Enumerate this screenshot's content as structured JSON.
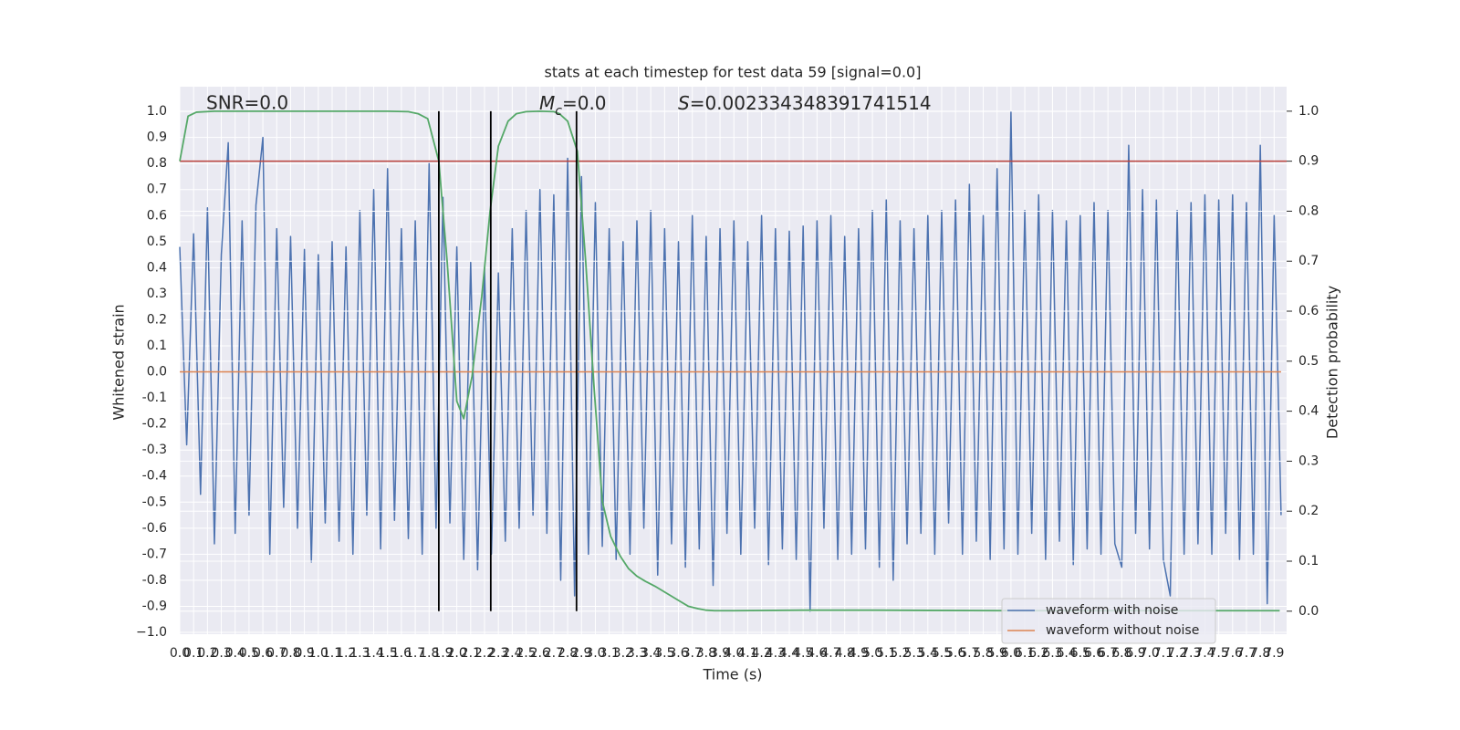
{
  "chart_data": {
    "type": "line",
    "title": "stats at each timestep for test data 59 [signal=0.0]",
    "x_label": "Time (s)",
    "y_label": "Whitened strain",
    "y2_label": "Detection probability",
    "xlim": [
      0,
      7.99
    ],
    "ylim": [
      -1.007,
      1.095
    ],
    "y2lim": [
      -0.046,
      1.049
    ],
    "grid": true,
    "legend": "lower right",
    "xticks": [
      {
        "value": 0,
        "label": "0.0"
      },
      0.1,
      0.2,
      0.3,
      0.4,
      0.5,
      0.6,
      0.7,
      0.8,
      0.9,
      {
        "value": 1,
        "label": "1.0"
      },
      1.1,
      1.2,
      1.3,
      1.4,
      1.5,
      1.6,
      1.7,
      1.8,
      1.9,
      {
        "value": 2,
        "label": "2.0"
      },
      2.1,
      2.2,
      2.3,
      2.4,
      2.5,
      2.6,
      2.7,
      2.8,
      2.9,
      {
        "value": 3,
        "label": "3.0"
      },
      3.1,
      3.2,
      3.3,
      3.4,
      3.5,
      3.6,
      3.7,
      3.8,
      3.9,
      {
        "value": 4,
        "label": "4.0"
      },
      4.1,
      4.2,
      4.3,
      4.4,
      4.5,
      4.6,
      4.7,
      4.8,
      4.9,
      {
        "value": 5,
        "label": "5.0"
      },
      5.1,
      5.2,
      5.3,
      5.4,
      5.5,
      5.6,
      5.7,
      5.8,
      5.9,
      {
        "value": 6,
        "label": "6.0"
      },
      6.1,
      6.2,
      6.3,
      6.4,
      6.5,
      6.6,
      6.7,
      6.8,
      6.9,
      {
        "value": 7,
        "label": "7.0"
      },
      7.1,
      7.2,
      7.3,
      7.4,
      7.5,
      7.6,
      7.7,
      7.8,
      7.9
    ],
    "yticks": [
      {
        "value": 1,
        "label": "1.0"
      },
      0.9,
      0.8,
      0.7,
      0.6,
      0.5,
      0.4,
      0.3,
      0.2,
      0.1,
      {
        "value": 0,
        "label": "0.0"
      },
      -0.1,
      -0.2,
      -0.3,
      -0.4,
      -0.5,
      -0.6,
      -0.7,
      -0.8,
      -0.9,
      {
        "value": -1,
        "label": "−1.0"
      }
    ],
    "y2ticks": [
      {
        "value": 1,
        "label": "1.0"
      },
      0.9,
      0.8,
      0.7,
      0.6,
      0.5,
      0.4,
      0.3,
      0.2,
      0.1,
      {
        "value": 0,
        "label": "0.0"
      }
    ],
    "series": [
      {
        "name": "waveform with noise",
        "color": "#4c72b0",
        "x": [
          0,
          0.05,
          0.1,
          0.15,
          0.2,
          0.25,
          0.3,
          0.35,
          0.4,
          0.45,
          0.5,
          0.55,
          0.6,
          0.65,
          0.7,
          0.75,
          0.8,
          0.85,
          0.9,
          0.95,
          1,
          1.05,
          1.1,
          1.15,
          1.2,
          1.25,
          1.3,
          1.35,
          1.4,
          1.45,
          1.5,
          1.55,
          1.6,
          1.65,
          1.7,
          1.75,
          1.8,
          1.85,
          1.9,
          1.95,
          2,
          2.05,
          2.1,
          2.15,
          2.2,
          2.25,
          2.3,
          2.35,
          2.4,
          2.45,
          2.5,
          2.55,
          2.6,
          2.65,
          2.7,
          2.75,
          2.8,
          2.85,
          2.9,
          2.95,
          3,
          3.05,
          3.1,
          3.15,
          3.2,
          3.25,
          3.3,
          3.35,
          3.4,
          3.45,
          3.5,
          3.55,
          3.6,
          3.65,
          3.7,
          3.75,
          3.8,
          3.85,
          3.9,
          3.95,
          4,
          4.05,
          4.1,
          4.15,
          4.2,
          4.25,
          4.3,
          4.35,
          4.4,
          4.45,
          4.5,
          4.55,
          4.6,
          4.65,
          4.7,
          4.75,
          4.8,
          4.85,
          4.9,
          4.95,
          5,
          5.05,
          5.1,
          5.15,
          5.2,
          5.25,
          5.3,
          5.35,
          5.4,
          5.45,
          5.5,
          5.55,
          5.6,
          5.65,
          5.7,
          5.75,
          5.8,
          5.85,
          5.9,
          5.95,
          6,
          6.05,
          6.1,
          6.15,
          6.2,
          6.25,
          6.3,
          6.35,
          6.4,
          6.45,
          6.5,
          6.55,
          6.6,
          6.65,
          6.7,
          6.75,
          6.8,
          6.85,
          6.9,
          6.95,
          7,
          7.05,
          7.1,
          7.15,
          7.2,
          7.25,
          7.3,
          7.35,
          7.4,
          7.45,
          7.5,
          7.55,
          7.6,
          7.65,
          7.7,
          7.75,
          7.8,
          7.85,
          7.9,
          7.95
        ],
        "values": [
          0.48,
          -0.28,
          0.53,
          -0.47,
          0.63,
          -0.66,
          0.45,
          0.88,
          -0.62,
          0.58,
          -0.55,
          0.64,
          0.9,
          -0.7,
          0.55,
          -0.52,
          0.52,
          -0.6,
          0.47,
          -0.73,
          0.45,
          -0.58,
          0.5,
          -0.65,
          0.48,
          -0.7,
          0.62,
          -0.55,
          0.7,
          -0.68,
          0.78,
          -0.57,
          0.55,
          -0.64,
          0.58,
          -0.7,
          0.8,
          -0.6,
          0.67,
          -0.58,
          0.48,
          -0.72,
          0.42,
          -0.76,
          0.4,
          -0.7,
          0.38,
          -0.65,
          0.55,
          -0.6,
          0.62,
          -0.55,
          0.7,
          -0.62,
          0.68,
          -0.8,
          0.82,
          -0.86,
          0.75,
          -0.7,
          0.65,
          -0.67,
          0.55,
          -0.72,
          0.5,
          -0.7,
          0.58,
          -0.6,
          0.62,
          -0.78,
          0.55,
          -0.66,
          0.5,
          -0.75,
          0.6,
          -0.68,
          0.52,
          -0.82,
          0.55,
          -0.62,
          0.58,
          -0.7,
          0.5,
          -0.6,
          0.6,
          -0.74,
          0.55,
          -0.68,
          0.54,
          -0.72,
          0.56,
          -0.92,
          0.58,
          -0.6,
          0.6,
          -0.72,
          0.52,
          -0.7,
          0.55,
          -0.68,
          0.62,
          -0.75,
          0.66,
          -0.8,
          0.58,
          -0.66,
          0.55,
          -0.62,
          0.6,
          -0.7,
          0.62,
          -0.58,
          0.66,
          -0.7,
          0.72,
          -0.65,
          0.6,
          -0.72,
          0.78,
          -0.68,
          1.0,
          -0.7,
          0.62,
          -0.62,
          0.68,
          -0.72,
          0.62,
          -0.65,
          0.58,
          -0.74,
          0.6,
          -0.68,
          0.65,
          -0.7,
          0.62,
          -0.66,
          -0.75,
          0.87,
          -0.62,
          0.7,
          -0.68,
          0.66,
          -0.72,
          -0.86,
          0.62,
          -0.7,
          0.65,
          -0.66,
          0.68,
          -0.7,
          0.66,
          -0.62,
          0.68,
          -0.72,
          0.65,
          -0.7,
          0.87,
          -0.89,
          0.6,
          -0.55
        ]
      },
      {
        "name": "waveform without noise",
        "color": "#dd8452",
        "x": [
          0,
          7.95
        ],
        "values": [
          0,
          0
        ]
      }
    ],
    "probability": {
      "color": "#55a868",
      "axis": "y2",
      "x": [
        0,
        0.06,
        0.12,
        0.25,
        0.5,
        1.0,
        1.5,
        1.65,
        1.72,
        1.79,
        1.87,
        1.93,
        2.0,
        2.05,
        2.11,
        2.18,
        2.24,
        2.3,
        2.37,
        2.43,
        2.5,
        2.6,
        2.7,
        2.74,
        2.8,
        2.87,
        2.93,
        2.99,
        3.05,
        3.11,
        3.18,
        3.24,
        3.3,
        3.36,
        3.43,
        3.49,
        3.55,
        3.61,
        3.67,
        3.74,
        3.8,
        3.86,
        4.0,
        4.5,
        5.0,
        6.0,
        7.0,
        7.94
      ],
      "values": [
        0.9,
        0.99,
        0.998,
        1.0,
        1.0,
        1.0,
        1.0,
        0.999,
        0.995,
        0.985,
        0.9,
        0.7,
        0.42,
        0.385,
        0.47,
        0.63,
        0.8,
        0.93,
        0.98,
        0.995,
        0.999,
        1.0,
        0.999,
        0.995,
        0.98,
        0.92,
        0.7,
        0.45,
        0.22,
        0.15,
        0.11,
        0.085,
        0.07,
        0.06,
        0.05,
        0.04,
        0.03,
        0.02,
        0.01,
        0.005,
        0.002,
        0.001,
        0.001,
        0.002,
        0.002,
        0.001,
        0.001,
        0.001
      ]
    },
    "threshold": 0.9,
    "threshold_color": "#b8403a",
    "vlines": [
      1.87,
      2.245,
      2.864
    ],
    "vline_color": "#000000",
    "annotations": {
      "snr": "SNR=0.0",
      "mc": {
        "symbol": "M",
        "subscript": "c",
        "text": "=0.0"
      },
      "s": {
        "symbol": "S",
        "text": "=0.002334348391741514"
      }
    }
  }
}
